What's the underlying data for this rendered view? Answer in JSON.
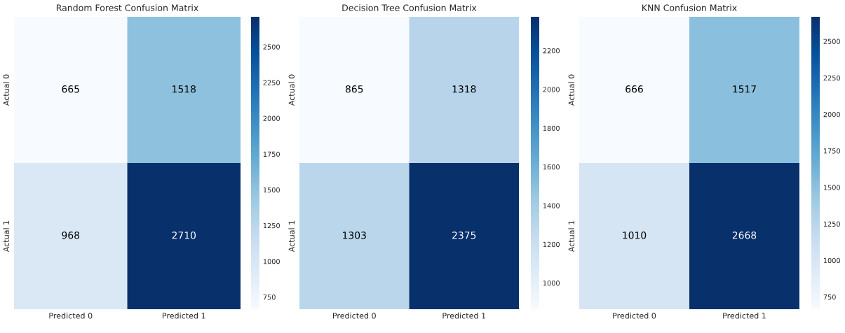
{
  "chart_data": [
    {
      "type": "heatmap",
      "title": "Random Forest Confusion Matrix",
      "categories": [
        "Predicted 0",
        "Predicted 1"
      ],
      "y_categories": [
        "Actual 0",
        "Actual 1"
      ],
      "cells": [
        [
          665,
          1518
        ],
        [
          968,
          2710
        ]
      ],
      "data_labels": true,
      "clim": [
        665,
        2710
      ],
      "cticks": [
        750,
        1000,
        1250,
        1500,
        1750,
        2000,
        2250,
        2500
      ]
    },
    {
      "type": "heatmap",
      "title": "Decision Tree Confusion Matrix",
      "categories": [
        "Predicted 0",
        "Predicted 1"
      ],
      "y_categories": [
        "Actual 0",
        "Actual 1"
      ],
      "cells": [
        [
          865,
          1318
        ],
        [
          1303,
          2375
        ]
      ],
      "data_labels": true,
      "clim": [
        865,
        2375
      ],
      "cticks": [
        1000,
        1200,
        1400,
        1600,
        1800,
        2000,
        2200
      ]
    },
    {
      "type": "heatmap",
      "title": "KNN Confusion Matrix",
      "categories": [
        "Predicted 0",
        "Predicted 1"
      ],
      "y_categories": [
        "Actual 0",
        "Actual 1"
      ],
      "cells": [
        [
          666,
          1517
        ],
        [
          1010,
          2668
        ]
      ],
      "data_labels": true,
      "clim": [
        666,
        2668
      ],
      "cticks": [
        750,
        1000,
        1250,
        1500,
        1750,
        2000,
        2250,
        2500
      ]
    }
  ]
}
